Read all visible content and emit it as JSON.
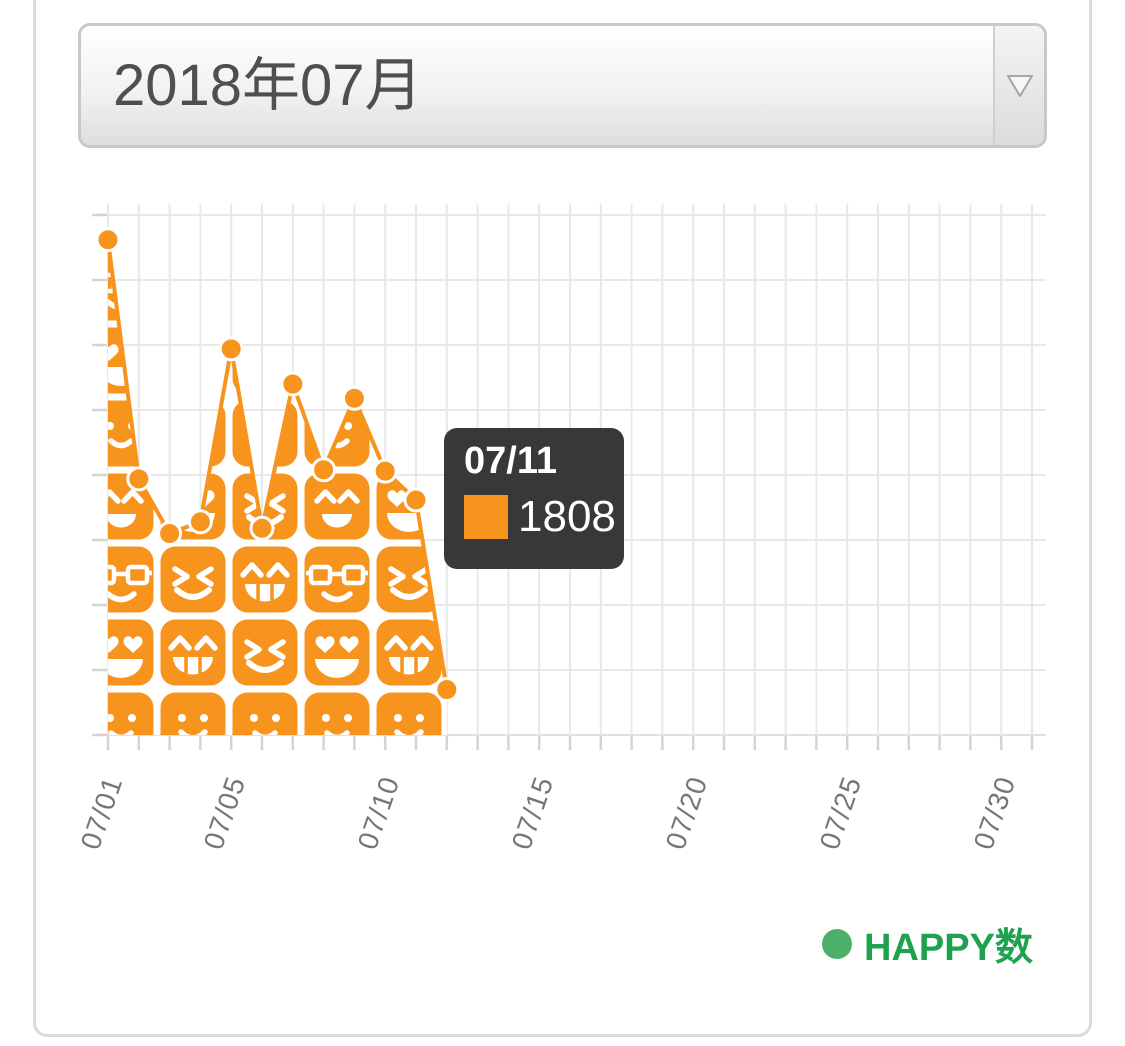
{
  "month_selector": {
    "value": "2018年07月"
  },
  "tooltip": {
    "date": "07/11",
    "value": "1808"
  },
  "legend": {
    "label": "HAPPY数"
  },
  "chart_data": {
    "type": "area",
    "series_name": "HAPPY数",
    "x": [
      "07/01",
      "07/02",
      "07/03",
      "07/04",
      "07/05",
      "07/06",
      "07/07",
      "07/08",
      "07/09",
      "07/10",
      "07/11",
      "07/12"
    ],
    "values": [
      3810,
      1970,
      1550,
      1640,
      2970,
      1590,
      2700,
      2040,
      2590,
      2030,
      1808,
      350
    ],
    "highlighted_point": {
      "x": "07/11",
      "value": 1808
    },
    "xtick_labels": [
      "07/01",
      "07/05",
      "07/10",
      "07/15",
      "07/20",
      "07/25",
      "07/30"
    ],
    "x_domain_days": 31,
    "ylim": [
      0,
      4000
    ],
    "y_grid_step": 500,
    "grid": true,
    "legend_position": "bottom-right",
    "colors": {
      "series": "#F7941E",
      "marker_ring": "#FFFFFF",
      "legend_dot": "#4CB06A",
      "legend_text": "#1FA24D",
      "tooltip_bg": "#383838",
      "grid_line": "#E8E8E8",
      "baseline": "#E0E0E0",
      "tick": "#D4D4D4",
      "axis_label": "#767676"
    }
  }
}
